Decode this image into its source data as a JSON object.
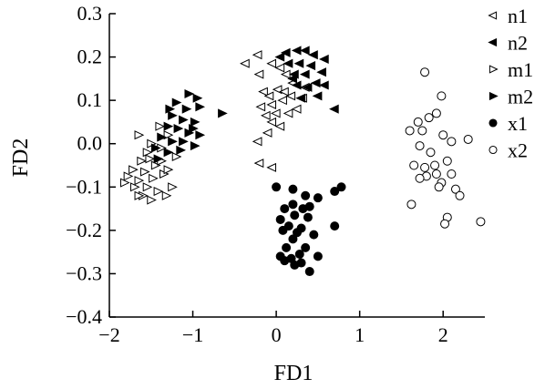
{
  "chart_data": {
    "type": "scatter",
    "xlabel": "FD1",
    "ylabel": "FD2",
    "xlim": [
      -2,
      2.5
    ],
    "ylim": [
      -0.4,
      0.3
    ],
    "x_ticks": [
      -2,
      -1,
      0,
      1,
      2
    ],
    "x_tick_labels": [
      "−2",
      "−1",
      "0",
      "1",
      "2"
    ],
    "y_ticks": [
      -0.4,
      -0.3,
      -0.2,
      -0.1,
      0.0,
      0.1,
      0.2,
      0.3
    ],
    "y_tick_labels": [
      "−0.4",
      "−0.3",
      "−0.2",
      "−0.1",
      "0.0",
      "0.1",
      "0.2",
      "0.3"
    ],
    "grid": false,
    "legend_position": "right",
    "series": [
      {
        "name": "n1",
        "marker": "triangle-left-open",
        "color": "#000000",
        "points": [
          [
            -0.37,
            0.185
          ],
          [
            -0.22,
            0.205
          ],
          [
            -0.05,
            0.185
          ],
          [
            0.05,
            0.175
          ],
          [
            0.12,
            0.16
          ],
          [
            -0.2,
            0.16
          ],
          [
            0.2,
            0.14
          ],
          [
            0.35,
            0.13
          ],
          [
            -0.15,
            0.12
          ],
          [
            0.02,
            0.125
          ],
          [
            0.18,
            0.11
          ],
          [
            0.32,
            0.105
          ],
          [
            -0.18,
            0.085
          ],
          [
            -0.05,
            0.09
          ],
          [
            0.08,
            0.1
          ],
          [
            -0.12,
            0.065
          ],
          [
            0.0,
            0.07
          ],
          [
            0.15,
            0.07
          ],
          [
            -0.05,
            0.05
          ],
          [
            0.05,
            0.04
          ],
          [
            -0.1,
            0.025
          ],
          [
            -0.22,
            0.005
          ],
          [
            -0.2,
            -0.045
          ],
          [
            -0.05,
            -0.055
          ],
          [
            0.1,
            0.12
          ],
          [
            -0.08,
            0.11
          ],
          [
            0.25,
            0.08
          ]
        ]
      },
      {
        "name": "n2",
        "marker": "triangle-left-filled",
        "color": "#000000",
        "points": [
          [
            0.12,
            0.21
          ],
          [
            0.25,
            0.215
          ],
          [
            0.35,
            0.215
          ],
          [
            0.45,
            0.205
          ],
          [
            0.58,
            0.195
          ],
          [
            0.15,
            0.185
          ],
          [
            0.28,
            0.185
          ],
          [
            0.42,
            0.18
          ],
          [
            0.55,
            0.165
          ],
          [
            0.22,
            0.16
          ],
          [
            0.35,
            0.16
          ],
          [
            0.48,
            0.14
          ],
          [
            0.25,
            0.135
          ],
          [
            0.38,
            0.13
          ],
          [
            0.58,
            0.135
          ],
          [
            0.5,
            0.11
          ],
          [
            0.3,
            0.105
          ],
          [
            0.7,
            0.08
          ],
          [
            0.2,
            0.15
          ],
          [
            0.05,
            0.2
          ]
        ]
      },
      {
        "name": "m1",
        "marker": "triangle-right-open",
        "color": "#000000",
        "points": [
          [
            -1.65,
            0.02
          ],
          [
            -1.4,
            0.04
          ],
          [
            -1.3,
            0.02
          ],
          [
            -1.5,
            0.0
          ],
          [
            -1.38,
            -0.01
          ],
          [
            -1.55,
            -0.02
          ],
          [
            -1.62,
            -0.04
          ],
          [
            -1.45,
            -0.05
          ],
          [
            -1.72,
            -0.06
          ],
          [
            -1.58,
            -0.065
          ],
          [
            -1.35,
            -0.07
          ],
          [
            -1.48,
            -0.08
          ],
          [
            -1.65,
            -0.085
          ],
          [
            -1.82,
            -0.09
          ],
          [
            -1.7,
            -0.1
          ],
          [
            -1.55,
            -0.1
          ],
          [
            -1.42,
            -0.11
          ],
          [
            -1.6,
            -0.12
          ],
          [
            -1.32,
            -0.12
          ],
          [
            -1.5,
            -0.13
          ],
          [
            -1.25,
            -0.1
          ],
          [
            -1.3,
            -0.06
          ],
          [
            -1.2,
            -0.03
          ],
          [
            -1.78,
            -0.075
          ],
          [
            -1.38,
            -0.04
          ],
          [
            -1.52,
            -0.035
          ],
          [
            -1.65,
            -0.12
          ]
        ]
      },
      {
        "name": "m2",
        "marker": "triangle-right-filled",
        "color": "#000000",
        "points": [
          [
            -1.05,
            0.115
          ],
          [
            -0.95,
            0.105
          ],
          [
            -1.2,
            0.095
          ],
          [
            -1.08,
            0.08
          ],
          [
            -0.92,
            0.085
          ],
          [
            -1.25,
            0.065
          ],
          [
            -1.12,
            0.055
          ],
          [
            -0.98,
            0.05
          ],
          [
            -1.3,
            0.04
          ],
          [
            -1.18,
            0.035
          ],
          [
            -1.05,
            0.025
          ],
          [
            -0.92,
            0.02
          ],
          [
            -1.38,
            0.015
          ],
          [
            -1.25,
            0.005
          ],
          [
            -1.12,
            0.005
          ],
          [
            -0.98,
            -0.005
          ],
          [
            -1.45,
            -0.01
          ],
          [
            -1.3,
            -0.02
          ],
          [
            -1.15,
            -0.015
          ],
          [
            -1.42,
            -0.035
          ],
          [
            -0.65,
            0.07
          ],
          [
            -1.0,
            0.035
          ],
          [
            -1.28,
            0.08
          ]
        ]
      },
      {
        "name": "x1",
        "marker": "circle-filled",
        "color": "#000000",
        "points": [
          [
            0.0,
            -0.1
          ],
          [
            0.2,
            -0.105
          ],
          [
            0.7,
            -0.11
          ],
          [
            0.78,
            -0.1
          ],
          [
            0.35,
            -0.12
          ],
          [
            0.5,
            -0.125
          ],
          [
            0.2,
            -0.14
          ],
          [
            0.1,
            -0.15
          ],
          [
            0.32,
            -0.15
          ],
          [
            0.4,
            -0.145
          ],
          [
            0.22,
            -0.165
          ],
          [
            0.05,
            -0.175
          ],
          [
            0.38,
            -0.17
          ],
          [
            0.15,
            -0.19
          ],
          [
            0.7,
            -0.19
          ],
          [
            0.3,
            -0.195
          ],
          [
            0.08,
            -0.2
          ],
          [
            0.45,
            -0.21
          ],
          [
            0.2,
            -0.22
          ],
          [
            0.12,
            -0.24
          ],
          [
            0.35,
            -0.24
          ],
          [
            0.05,
            -0.26
          ],
          [
            0.28,
            -0.255
          ],
          [
            0.5,
            -0.26
          ],
          [
            0.18,
            -0.265
          ],
          [
            0.3,
            -0.275
          ],
          [
            0.1,
            -0.27
          ],
          [
            0.22,
            -0.28
          ],
          [
            0.4,
            -0.295
          ],
          [
            0.25,
            -0.205
          ]
        ]
      },
      {
        "name": "x2",
        "marker": "circle-open",
        "color": "#000000",
        "points": [
          [
            1.78,
            0.165
          ],
          [
            1.98,
            0.11
          ],
          [
            1.7,
            0.05
          ],
          [
            1.83,
            0.06
          ],
          [
            1.92,
            0.07
          ],
          [
            1.6,
            0.03
          ],
          [
            1.75,
            0.03
          ],
          [
            2.0,
            0.02
          ],
          [
            2.1,
            0.005
          ],
          [
            2.3,
            0.01
          ],
          [
            1.72,
            -0.005
          ],
          [
            1.85,
            -0.02
          ],
          [
            1.65,
            -0.05
          ],
          [
            1.78,
            -0.055
          ],
          [
            1.9,
            -0.05
          ],
          [
            2.05,
            -0.04
          ],
          [
            1.8,
            -0.075
          ],
          [
            1.92,
            -0.07
          ],
          [
            2.1,
            -0.07
          ],
          [
            1.98,
            -0.09
          ],
          [
            2.15,
            -0.105
          ],
          [
            2.2,
            -0.12
          ],
          [
            1.62,
            -0.14
          ],
          [
            2.05,
            -0.17
          ],
          [
            2.02,
            -0.185
          ],
          [
            2.45,
            -0.18
          ],
          [
            1.72,
            -0.08
          ],
          [
            1.95,
            -0.1
          ]
        ]
      }
    ]
  }
}
